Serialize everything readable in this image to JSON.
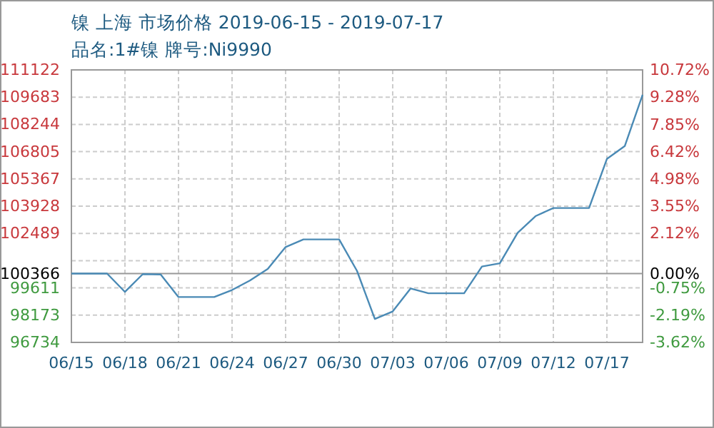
{
  "chart_data": {
    "type": "line",
    "title": "镍 上海 市场价格 2019-06-15 - 2019-07-17",
    "subtitle": "品名:1#镍 牌号:Ni9990",
    "categories": [
      "06/15",
      null,
      null,
      "06/18",
      null,
      null,
      "06/21",
      null,
      null,
      "06/24",
      null,
      null,
      "06/27",
      null,
      null,
      "06/30",
      null,
      null,
      "07/03",
      null,
      null,
      "07/06",
      null,
      null,
      "07/09",
      null,
      null,
      "07/12",
      null,
      null,
      "07/17",
      null,
      null
    ],
    "series": [
      {
        "color": "#4a8ab5",
        "values": [
          100370,
          100370,
          100370,
          99400,
          100340,
          100320,
          99130,
          99130,
          99130,
          99500,
          100000,
          100610,
          101770,
          102170,
          102170,
          102170,
          100510,
          97970,
          98370,
          99580,
          99330,
          99330,
          99330,
          100740,
          100910,
          102520,
          103400,
          103830,
          103830,
          103830,
          106420,
          107100,
          109810
        ]
      }
    ],
    "ylim": [
      96734,
      111122
    ],
    "yticks": [
      96734,
      98173,
      99611,
      {
        "value": 101050,
        "label": null
      },
      102489,
      103928,
      105367,
      106805,
      108244,
      109683,
      111122
    ],
    "y2lim": [
      -3.62,
      10.72
    ],
    "y2ticks": [
      {
        "value": -3.62,
        "label": "-3.62%"
      },
      {
        "value": -2.19,
        "label": "-2.19%"
      },
      {
        "value": -0.75,
        "label": "-0.75%"
      },
      {
        "value": 0,
        "label": "0.00%"
      },
      {
        "value": 0.68,
        "label": null
      },
      {
        "value": 2.12,
        "label": "2.12%"
      },
      {
        "value": 3.55,
        "label": "3.55%"
      },
      {
        "value": 4.98,
        "label": "4.98%"
      },
      {
        "value": 6.42,
        "label": "6.42%"
      },
      {
        "value": 7.85,
        "label": "7.85%"
      },
      {
        "value": 9.28,
        "label": "9.28%"
      },
      {
        "value": 10.72,
        "label": "10.72%"
      }
    ],
    "ref_lines": [
      {
        "axis": "y",
        "value": 100366,
        "label": "100366",
        "color": "#999999"
      }
    ],
    "grid": true,
    "marker": "none",
    "line_style": "solid"
  }
}
